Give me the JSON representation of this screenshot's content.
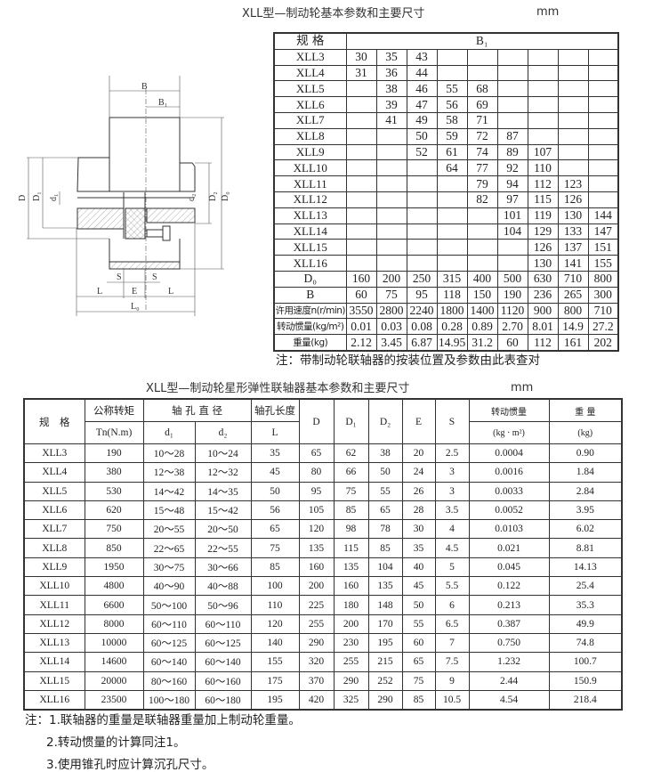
{
  "brake_wheel": {
    "title": "XLL型—制动轮基本参数和主要尺寸",
    "unit": "mm",
    "header_spec": "规 格",
    "header_b1": "B₁",
    "rows": [
      {
        "spec": "XLL3",
        "b1": [
          "30",
          "35",
          "43",
          "",
          "",
          "",
          "",
          "",
          ""
        ]
      },
      {
        "spec": "XLL4",
        "b1": [
          "31",
          "36",
          "44",
          "",
          "",
          "",
          "",
          "",
          ""
        ]
      },
      {
        "spec": "XLL5",
        "b1": [
          "",
          "38",
          "46",
          "55",
          "68",
          "",
          "",
          "",
          ""
        ]
      },
      {
        "spec": "XLL6",
        "b1": [
          "",
          "39",
          "47",
          "56",
          "69",
          "",
          "",
          "",
          ""
        ]
      },
      {
        "spec": "XLL7",
        "b1": [
          "",
          "41",
          "49",
          "58",
          "71",
          "",
          "",
          "",
          ""
        ]
      },
      {
        "spec": "XLL8",
        "b1": [
          "",
          "",
          "50",
          "59",
          "72",
          "87",
          "",
          "",
          ""
        ]
      },
      {
        "spec": "XLL9",
        "b1": [
          "",
          "",
          "52",
          "61",
          "74",
          "89",
          "107",
          "",
          ""
        ]
      },
      {
        "spec": "XLL10",
        "b1": [
          "",
          "",
          "",
          "64",
          "77",
          "92",
          "110",
          "",
          ""
        ]
      },
      {
        "spec": "XLL11",
        "b1": [
          "",
          "",
          "",
          "",
          "79",
          "94",
          "112",
          "123",
          ""
        ]
      },
      {
        "spec": "XLL12",
        "b1": [
          "",
          "",
          "",
          "",
          "82",
          "97",
          "115",
          "126",
          ""
        ]
      },
      {
        "spec": "XLL13",
        "b1": [
          "",
          "",
          "",
          "",
          "",
          "101",
          "119",
          "130",
          "144"
        ]
      },
      {
        "spec": "XLL14",
        "b1": [
          "",
          "",
          "",
          "",
          "",
          "104",
          "129",
          "133",
          "147"
        ]
      },
      {
        "spec": "XLL15",
        "b1": [
          "",
          "",
          "",
          "",
          "",
          "",
          "126",
          "137",
          "151"
        ]
      },
      {
        "spec": "XLL16",
        "b1": [
          "",
          "",
          "",
          "",
          "",
          "",
          "130",
          "141",
          "155"
        ]
      }
    ],
    "params": [
      {
        "label": "D₀",
        "values": [
          "160",
          "200",
          "250",
          "315",
          "400",
          "500",
          "630",
          "710",
          "800"
        ]
      },
      {
        "label": "B",
        "values": [
          "60",
          "75",
          "95",
          "118",
          "150",
          "190",
          "236",
          "265",
          "300"
        ]
      },
      {
        "label": "许用速度n(r/min)",
        "values": [
          "3550",
          "2800",
          "2240",
          "1800",
          "1400",
          "1120",
          "900",
          "800",
          "710"
        ]
      },
      {
        "label": "转动惯量(kg/m²)",
        "values": [
          "0.01",
          "0.03",
          "0.08",
          "0.28",
          "0.89",
          "2.70",
          "8.01",
          "14.9",
          "27.2"
        ]
      },
      {
        "label": "重量(kg)",
        "values": [
          "2.12",
          "3.45",
          "6.87",
          "14.95",
          "31.2",
          "60",
          "112",
          "161",
          "202"
        ]
      }
    ],
    "note": "注：带制动轮联轴器的按装位置及参数由此表查对"
  },
  "diagram": {
    "labels": {
      "B": "B",
      "B1": "B₁",
      "D": "D",
      "D1": "D₁",
      "d1": "d₁",
      "d2": "d₂",
      "D2": "D₂",
      "D0": "D₀",
      "S": "S",
      "E": "E",
      "L": "L",
      "L0": "L₀"
    }
  },
  "coupling": {
    "title": "XLL型—制动轮星形弹性联轴器基本参数和主要尺寸",
    "unit": "mm",
    "headers": {
      "spec": "规　格",
      "torque": "公称转矩",
      "torque_unit": "Tn(N.m)",
      "bore_dia": "轴 孔 直 径",
      "d1": "d₁",
      "d2": "d₂",
      "bore_len": "轴孔长度",
      "bore_len_sym": "L",
      "D": "D",
      "D1": "D₁",
      "D2": "D₂",
      "E": "E",
      "S": "S",
      "inertia": "转动惯量",
      "inertia_unit": "(kg · m²)",
      "weight": "重 量",
      "weight_unit": "(kg)"
    },
    "rows": [
      [
        "XLL3",
        "190",
        "10～28",
        "10～24",
        "35",
        "65",
        "62",
        "38",
        "20",
        "2.5",
        "0.0004",
        "0.90"
      ],
      [
        "XLL4",
        "380",
        "12～38",
        "12～32",
        "45",
        "80",
        "66",
        "50",
        "24",
        "3",
        "0.0016",
        "1.84"
      ],
      [
        "XLL5",
        "530",
        "14～42",
        "14～35",
        "50",
        "95",
        "75",
        "55",
        "26",
        "3",
        "0.0033",
        "2.84"
      ],
      [
        "XLL6",
        "620",
        "15～48",
        "15～42",
        "56",
        "105",
        "85",
        "65",
        "28",
        "3.5",
        "0.0052",
        "3.95"
      ],
      [
        "XLL7",
        "750",
        "20～55",
        "20～50",
        "65",
        "120",
        "98",
        "78",
        "30",
        "4",
        "0.0103",
        "6.02"
      ],
      [
        "XLL8",
        "850",
        "22～65",
        "22～55",
        "75",
        "135",
        "115",
        "85",
        "35",
        "4.5",
        "0.021",
        "8.81"
      ],
      [
        "XLL9",
        "1950",
        "30～75",
        "30～66",
        "85",
        "160",
        "135",
        "104",
        "40",
        "5",
        "0.045",
        "14.13"
      ],
      [
        "XLL10",
        "4800",
        "40～90",
        "40～88",
        "100",
        "200",
        "160",
        "135",
        "45",
        "5.5",
        "0.122",
        "25.4"
      ],
      [
        "XLL11",
        "6600",
        "50～100",
        "50～96",
        "110",
        "225",
        "180",
        "148",
        "50",
        "6",
        "0.213",
        "35.3"
      ],
      [
        "XLL12",
        "8000",
        "60～110",
        "60～110",
        "120",
        "255",
        "200",
        "170",
        "55",
        "6.5",
        "0.387",
        "49.9"
      ],
      [
        "XLL13",
        "10000",
        "60～125",
        "60～125",
        "140",
        "290",
        "230",
        "195",
        "60",
        "7",
        "0.750",
        "74.8"
      ],
      [
        "XLL14",
        "14600",
        "60～140",
        "60～140",
        "155",
        "320",
        "255",
        "215",
        "65",
        "7.5",
        "1.232",
        "100.7"
      ],
      [
        "XLL15",
        "20000",
        "80～160",
        "60～160",
        "175",
        "370",
        "290",
        "252",
        "75",
        "9",
        "2.44",
        "150.9"
      ],
      [
        "XLL16",
        "23500",
        "100～180",
        "60～180",
        "195",
        "420",
        "325",
        "290",
        "85",
        "10.5",
        "4.54",
        "218.4"
      ]
    ],
    "notes": [
      "注：1.联轴器的重量是联轴器重量加上制动轮重量。",
      "2.转动惯量的计算同注1。",
      "3.使用锥孔时应计算沉孔尺寸。"
    ]
  }
}
